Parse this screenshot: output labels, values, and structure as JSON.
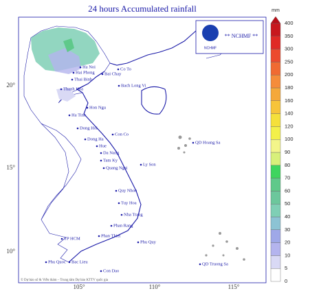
{
  "header": {
    "title": "24 hours Accumulated rainfall"
  },
  "logo": {
    "short": "NCHMF",
    "text": "** NCHMF **"
  },
  "axes": {
    "longitude_labels": [
      "105°",
      "110°",
      "115°"
    ],
    "latitude_labels": [
      "20°",
      "15°",
      "10°"
    ]
  },
  "places": [
    "Ha Noi",
    "Hai Phong",
    "Thai Binh",
    "Bai Chay",
    "Co To",
    "Bach Long Vi",
    "Thanh Hoa",
    "Hon Ngu",
    "Ha Tinh",
    "Dong Hoi",
    "Con Co",
    "Dong Ha",
    "Hue",
    "Da Nang",
    "Tam Ky",
    "Quang Ngai",
    "Ly Son",
    "QD Hoang Sa",
    "Quy Nhon",
    "Tuy Hoa",
    "Nha Trang",
    "Phan Rang",
    "Phan Thiet",
    "TP HCM",
    "Phu Quy",
    "Phu Quoc",
    "Bac Lieu",
    "Con Dao",
    "QD Truong Sa"
  ],
  "legend": {
    "unit": "mm",
    "levels": [
      0,
      5,
      10,
      20,
      30,
      40,
      50,
      60,
      70,
      80,
      90,
      100,
      120,
      140,
      160,
      180,
      200,
      250,
      300,
      350,
      400
    ],
    "colors": [
      "#ffffff",
      "#d9d9f5",
      "#b4b4ee",
      "#9fa8e8",
      "#8cc3d4",
      "#7fcfb5",
      "#6cc79c",
      "#5fc98a",
      "#3ed55e",
      "#d8f07a",
      "#f3f58a",
      "#f3f04a",
      "#f5e03a",
      "#f7c43a",
      "#f5a83a",
      "#f58c3a",
      "#f06a32",
      "#ec4a2e",
      "#e02a26",
      "#c8181e"
    ],
    "over_color": "#b80f18"
  },
  "footer": "© Dự báo số & Viễn thám – Trung tâm Dự báo KTTV quốc gia"
}
